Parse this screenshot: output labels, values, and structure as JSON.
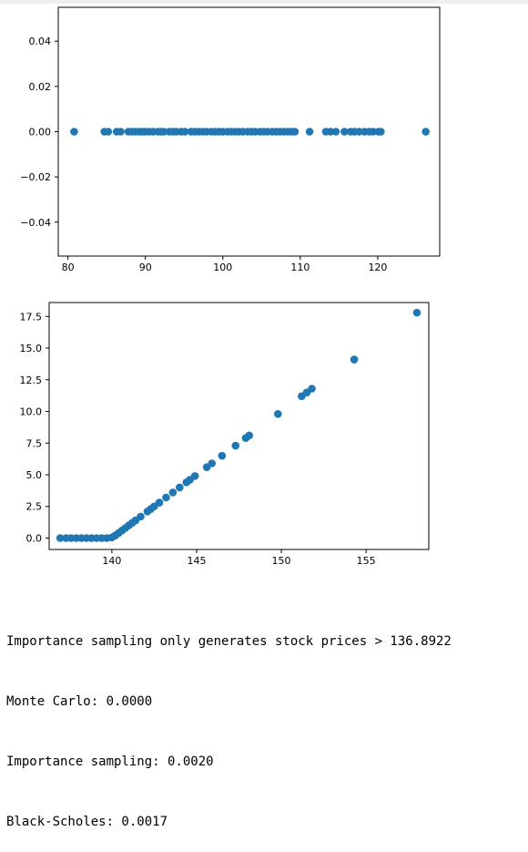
{
  "chart_data": [
    {
      "type": "scatter",
      "title": "",
      "xlabel": "",
      "ylabel": "",
      "xlim": [
        78.75,
        128.0
      ],
      "ylim": [
        -0.055,
        0.055
      ],
      "x_ticks": [
        {
          "value": 80,
          "label": "80"
        },
        {
          "value": 90,
          "label": "90"
        },
        {
          "value": 100,
          "label": "100"
        },
        {
          "value": 110,
          "label": "110"
        },
        {
          "value": 120,
          "label": "120"
        }
      ],
      "y_ticks": [
        {
          "value": 0.04,
          "label": "0.04"
        },
        {
          "value": 0.02,
          "label": "0.02"
        },
        {
          "value": 0.0,
          "label": "0.00"
        },
        {
          "value": -0.02,
          "label": "−0.02"
        },
        {
          "value": -0.04,
          "label": "−0.04"
        }
      ],
      "grid": false,
      "point_color": "#1f77b4",
      "x": [
        80.8,
        84.7,
        85.2,
        86.3,
        86.8,
        87.8,
        88.3,
        88.7,
        89.2,
        89.6,
        90.0,
        90.5,
        91.0,
        91.6,
        92.0,
        92.4,
        93.1,
        93.6,
        94.0,
        94.6,
        95.1,
        95.9,
        96.4,
        96.9,
        97.4,
        97.9,
        98.5,
        99.0,
        99.5,
        100.0,
        100.6,
        101.1,
        101.6,
        102.1,
        102.6,
        103.2,
        103.7,
        104.2,
        104.8,
        105.3,
        105.8,
        106.4,
        106.9,
        107.4,
        107.9,
        108.4,
        108.9,
        109.3,
        111.2,
        113.3,
        113.9,
        114.6,
        115.7,
        116.5,
        117.0,
        117.6,
        118.3,
        118.9,
        119.4,
        120.1,
        120.4,
        126.2
      ],
      "y": [
        0,
        0,
        0,
        0,
        0,
        0,
        0,
        0,
        0,
        0,
        0,
        0,
        0,
        0,
        0,
        0,
        0,
        0,
        0,
        0,
        0,
        0,
        0,
        0,
        0,
        0,
        0,
        0,
        0,
        0,
        0,
        0,
        0,
        0,
        0,
        0,
        0,
        0,
        0,
        0,
        0,
        0,
        0,
        0,
        0,
        0,
        0,
        0,
        0,
        0,
        0,
        0,
        0,
        0,
        0,
        0,
        0,
        0,
        0,
        0,
        0,
        0
      ]
    },
    {
      "type": "scatter",
      "title": "",
      "xlabel": "",
      "ylabel": "",
      "xlim": [
        136.3,
        158.7
      ],
      "ylim": [
        -0.9,
        18.6
      ],
      "x_ticks": [
        {
          "value": 140,
          "label": "140"
        },
        {
          "value": 145,
          "label": "145"
        },
        {
          "value": 150,
          "label": "150"
        },
        {
          "value": 155,
          "label": "155"
        }
      ],
      "y_ticks": [
        {
          "value": 17.5,
          "label": "17.5"
        },
        {
          "value": 15.0,
          "label": "15.0"
        },
        {
          "value": 12.5,
          "label": "12.5"
        },
        {
          "value": 10.0,
          "label": "10.0"
        },
        {
          "value": 7.5,
          "label": "7.5"
        },
        {
          "value": 5.0,
          "label": "5.0"
        },
        {
          "value": 2.5,
          "label": "2.5"
        },
        {
          "value": 0.0,
          "label": "0.0"
        }
      ],
      "grid": false,
      "point_color": "#1f77b4",
      "x": [
        136.95,
        137.3,
        137.6,
        137.9,
        138.2,
        138.5,
        138.8,
        139.1,
        139.4,
        139.7,
        140.0,
        140.2,
        140.4,
        140.6,
        140.8,
        141.0,
        141.2,
        141.4,
        141.7,
        142.1,
        142.3,
        142.5,
        142.8,
        143.2,
        143.6,
        144.0,
        144.4,
        144.6,
        144.9,
        145.6,
        145.9,
        146.5,
        147.3,
        147.9,
        148.1,
        149.8,
        151.2,
        151.5,
        151.8,
        154.3,
        158.0
      ],
      "y": [
        0,
        0,
        0,
        0,
        0,
        0,
        0,
        0,
        0,
        0,
        0.05,
        0.2,
        0.4,
        0.6,
        0.8,
        1.0,
        1.2,
        1.4,
        1.7,
        2.1,
        2.3,
        2.5,
        2.8,
        3.2,
        3.6,
        4.0,
        4.4,
        4.6,
        4.9,
        5.6,
        5.9,
        6.5,
        7.3,
        7.9,
        8.1,
        9.8,
        11.2,
        11.5,
        11.8,
        14.1,
        17.8
      ]
    }
  ],
  "output": {
    "line1": "Importance sampling only generates stock prices > 136.8922",
    "line2": "Monte Carlo: 0.0000",
    "line3": "Importance sampling: 0.0020",
    "line4": "Black-Scholes: 0.0017"
  }
}
